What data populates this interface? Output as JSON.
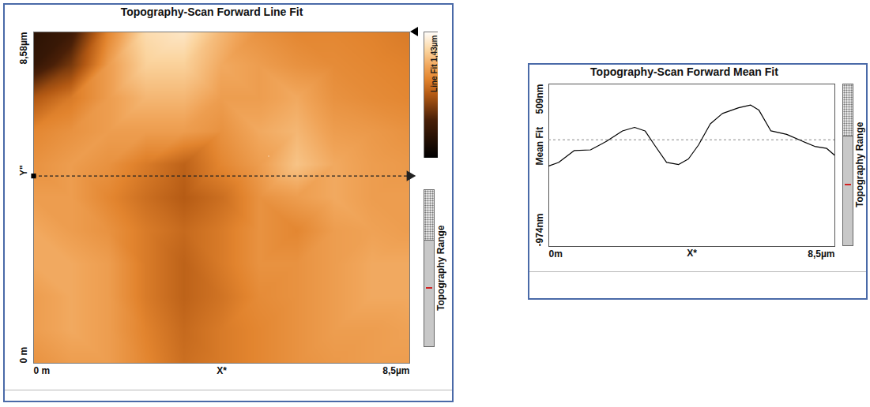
{
  "chart_data": [
    {
      "type": "heatmap",
      "title": "Topography-Scan Forward Line Fit",
      "x": [
        0,
        0.85,
        1.7,
        2.55,
        3.4,
        4.25,
        5.1,
        5.95,
        6.8,
        7.65,
        8.5
      ],
      "y": [
        8.58,
        7.722,
        6.864,
        6.006,
        5.148,
        4.29,
        3.432,
        2.574,
        1.716,
        0.858,
        0
      ],
      "z": [
        [
          0.25,
          0.35,
          0.9,
          1.25,
          1.3,
          1.1,
          0.95,
          0.9,
          0.9,
          0.88,
          0.85
        ],
        [
          0.3,
          0.55,
          1.0,
          1.2,
          1.2,
          1.05,
          1.0,
          0.95,
          0.92,
          0.9,
          0.88
        ],
        [
          0.7,
          0.85,
          1.0,
          1.1,
          1.1,
          1.0,
          1.0,
          1.05,
          0.95,
          0.92,
          0.9
        ],
        [
          0.9,
          0.95,
          1.0,
          1.0,
          1.0,
          0.95,
          1.05,
          1.1,
          1.0,
          0.98,
          0.95
        ],
        [
          0.95,
          1.0,
          0.95,
          0.85,
          0.75,
          0.9,
          1.0,
          1.15,
          1.05,
          1.0,
          0.98
        ],
        [
          1.0,
          1.0,
          0.9,
          0.8,
          0.72,
          0.8,
          0.95,
          1.0,
          1.05,
          1.0,
          1.0
        ],
        [
          1.05,
          1.0,
          0.95,
          0.85,
          0.78,
          0.85,
          0.95,
          0.9,
          1.0,
          1.02,
          1.0
        ],
        [
          1.05,
          1.05,
          1.0,
          0.85,
          0.75,
          0.85,
          0.95,
          0.95,
          1.0,
          1.05,
          1.05
        ],
        [
          1.0,
          1.05,
          1.0,
          0.85,
          0.75,
          0.82,
          0.92,
          0.95,
          1.0,
          1.05,
          1.05
        ],
        [
          1.0,
          1.05,
          1.0,
          0.88,
          0.78,
          0.85,
          0.9,
          0.95,
          1.0,
          1.0,
          1.02
        ],
        [
          0.95,
          1.0,
          1.0,
          0.9,
          0.8,
          0.85,
          0.9,
          0.95,
          0.98,
          1.0,
          1.0
        ]
      ],
      "xlim": [
        0,
        8.5
      ],
      "ylim": [
        0,
        8.58
      ],
      "xticks": [
        {
          "value": 0,
          "label": "0 m"
        },
        {
          "value": 8.5,
          "label": "8,5µm"
        }
      ],
      "yticks": [
        {
          "value": 0,
          "label": "0 m"
        },
        {
          "value": 8.58,
          "label": "8,58µm"
        }
      ],
      "xlabel": "X*",
      "scan_line": {
        "y": 4.85,
        "label": "Y\""
      },
      "colorbar": {
        "label": "Line Fit 1,43µm",
        "range": [
          0,
          1.43
        ]
      },
      "range_indicator": "Topography Range"
    },
    {
      "type": "line",
      "title": "Topography-Scan Forward Mean Fit",
      "x": [
        0,
        0.29,
        0.76,
        1.24,
        1.71,
        2.19,
        2.55,
        2.86,
        3.14,
        3.5,
        3.86,
        4.15,
        4.45,
        4.8,
        5.16,
        5.64,
        6.0,
        6.24,
        6.6,
        7.07,
        7.55,
        7.9,
        8.26,
        8.5
      ],
      "values": [
        -239,
        -207,
        -98,
        -92,
        -15,
        81,
        113,
        81,
        -47,
        -207,
        -226,
        -175,
        -47,
        145,
        240,
        292,
        317,
        272,
        81,
        49,
        -15,
        -60,
        -79,
        -143
      ],
      "color": "#000000",
      "line_style": "solid",
      "xlim": [
        0,
        8.5
      ],
      "ylim": [
        -974,
        509
      ],
      "xticks": [
        {
          "value": 0,
          "label": "0m"
        },
        {
          "value": 8.5,
          "label": "8,5µm"
        }
      ],
      "yticks": [
        {
          "value": -974,
          "label": "-974nm"
        },
        {
          "value": 509,
          "label": "509nm"
        }
      ],
      "xlabel": "X*",
      "ylabel": "Mean Fit",
      "reference_line": 0,
      "range_indicator": "Topography Range"
    }
  ]
}
